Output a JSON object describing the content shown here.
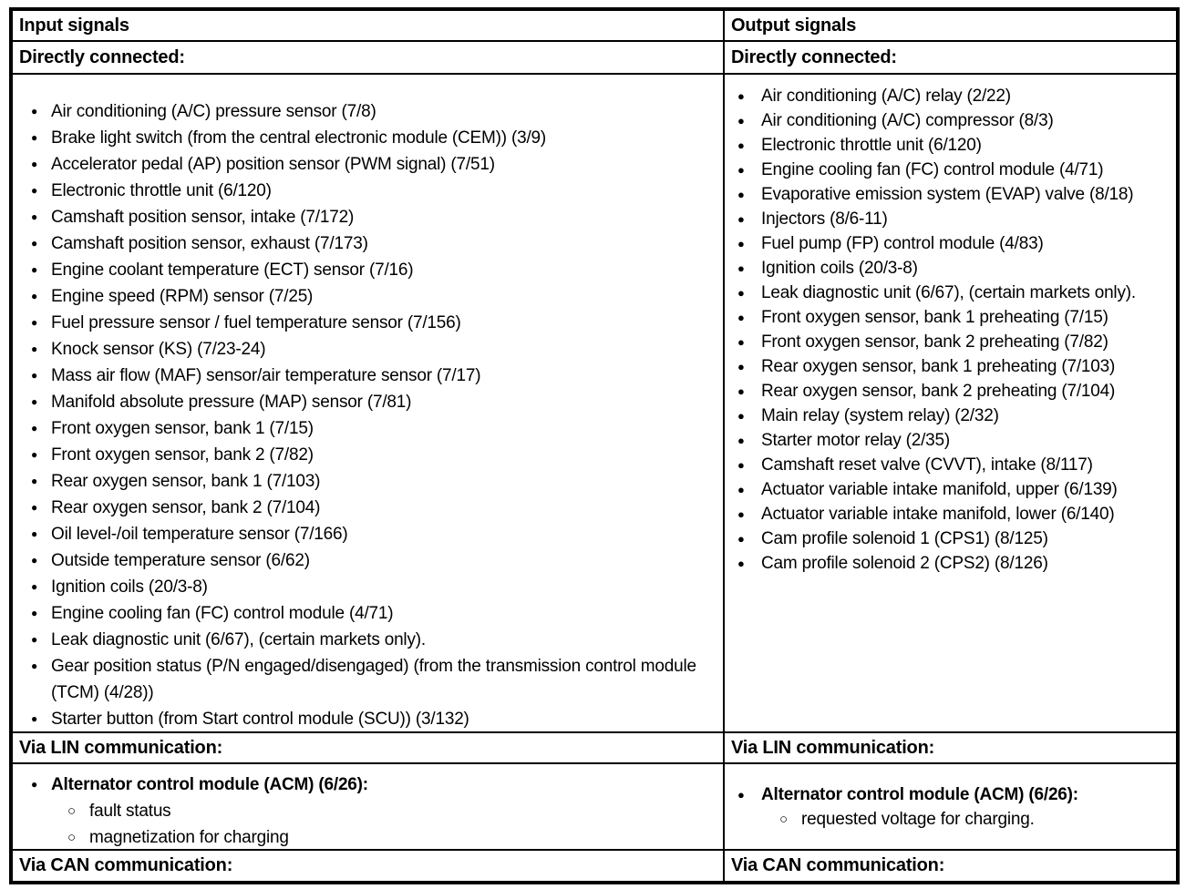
{
  "document": {
    "background_color": "#ffffff",
    "border_color": "#000000",
    "text_color": "#000000",
    "bullet_icon": "●",
    "sub_bullet_icon": "○",
    "columns": [
      {
        "id": "input",
        "header": "Input signals",
        "sections": {
          "directly_connected": {
            "title": "Directly connected:",
            "items": [
              "Air conditioning (A/C) pressure sensor (7/8)",
              "Brake light switch (from the central electronic module (CEM)) (3/9)",
              "Accelerator pedal (AP) position sensor (PWM signal) (7/51)",
              "Electronic throttle unit (6/120)",
              "Camshaft position sensor, intake (7/172)",
              "Camshaft position sensor, exhaust (7/173)",
              "Engine coolant temperature (ECT) sensor (7/16)",
              "Engine speed (RPM) sensor (7/25)",
              "Fuel pressure sensor / fuel temperature sensor (7/156)",
              "Knock sensor (KS) (7/23-24)",
              "Mass air flow (MAF) sensor/air temperature sensor (7/17)",
              "Manifold absolute pressure (MAP) sensor (7/81)",
              "Front oxygen sensor, bank 1 (7/15)",
              "Front oxygen sensor, bank 2 (7/82)",
              "Rear oxygen sensor, bank 1 (7/103)",
              "Rear oxygen sensor, bank 2 (7/104)",
              "Oil level-/oil temperature sensor (7/166)",
              "Outside temperature sensor (6/62)",
              "Ignition coils (20/3-8)",
              "Engine cooling fan (FC) control module (4/71)",
              "Leak diagnostic unit (6/67), (certain markets only).",
              "Gear position status (P/N engaged/disengaged) (from the transmission control module (TCM) (4/28))",
              "Starter button (from Start control module (SCU)) (3/132)"
            ]
          },
          "via_lin": {
            "title": "Via LIN communication:",
            "groups": [
              {
                "label": "Alternator control module (ACM) (6/26):",
                "subitems": [
                  "fault status",
                  "magnetization for charging"
                ]
              }
            ]
          },
          "via_can": {
            "title": "Via CAN communication:"
          }
        }
      },
      {
        "id": "output",
        "header": "Output signals",
        "sections": {
          "directly_connected": {
            "title": "Directly connected:",
            "items": [
              "Air conditioning (A/C) relay (2/22)",
              "Air conditioning (A/C) compressor (8/3)",
              "Electronic throttle unit (6/120)",
              "Engine cooling fan (FC) control module (4/71)",
              "Evaporative emission system (EVAP) valve (8/18)",
              "Injectors (8/6-11)",
              "Fuel pump (FP) control module (4/83)",
              "Ignition coils (20/3-8)",
              "Leak diagnostic unit (6/67), (certain markets only).",
              "Front oxygen sensor, bank 1 preheating (7/15)",
              "Front oxygen sensor, bank 2 preheating (7/82)",
              "Rear oxygen sensor, bank 1 preheating (7/103)",
              "Rear oxygen sensor, bank 2 preheating (7/104)",
              "Main relay (system relay) (2/32)",
              "Starter motor relay (2/35)",
              "Camshaft reset valve (CVVT), intake (8/117)",
              "Actuator variable intake manifold, upper (6/139)",
              "Actuator variable intake manifold, lower (6/140)",
              "Cam profile solenoid 1 (CPS1) (8/125)",
              "Cam profile solenoid 2 (CPS2) (8/126)"
            ]
          },
          "via_lin": {
            "title": "Via LIN communication:",
            "groups": [
              {
                "label": "Alternator control module (ACM) (6/26):",
                "subitems": [
                  "requested voltage for charging."
                ]
              }
            ]
          },
          "via_can": {
            "title": "Via CAN communication:"
          }
        }
      }
    ]
  }
}
